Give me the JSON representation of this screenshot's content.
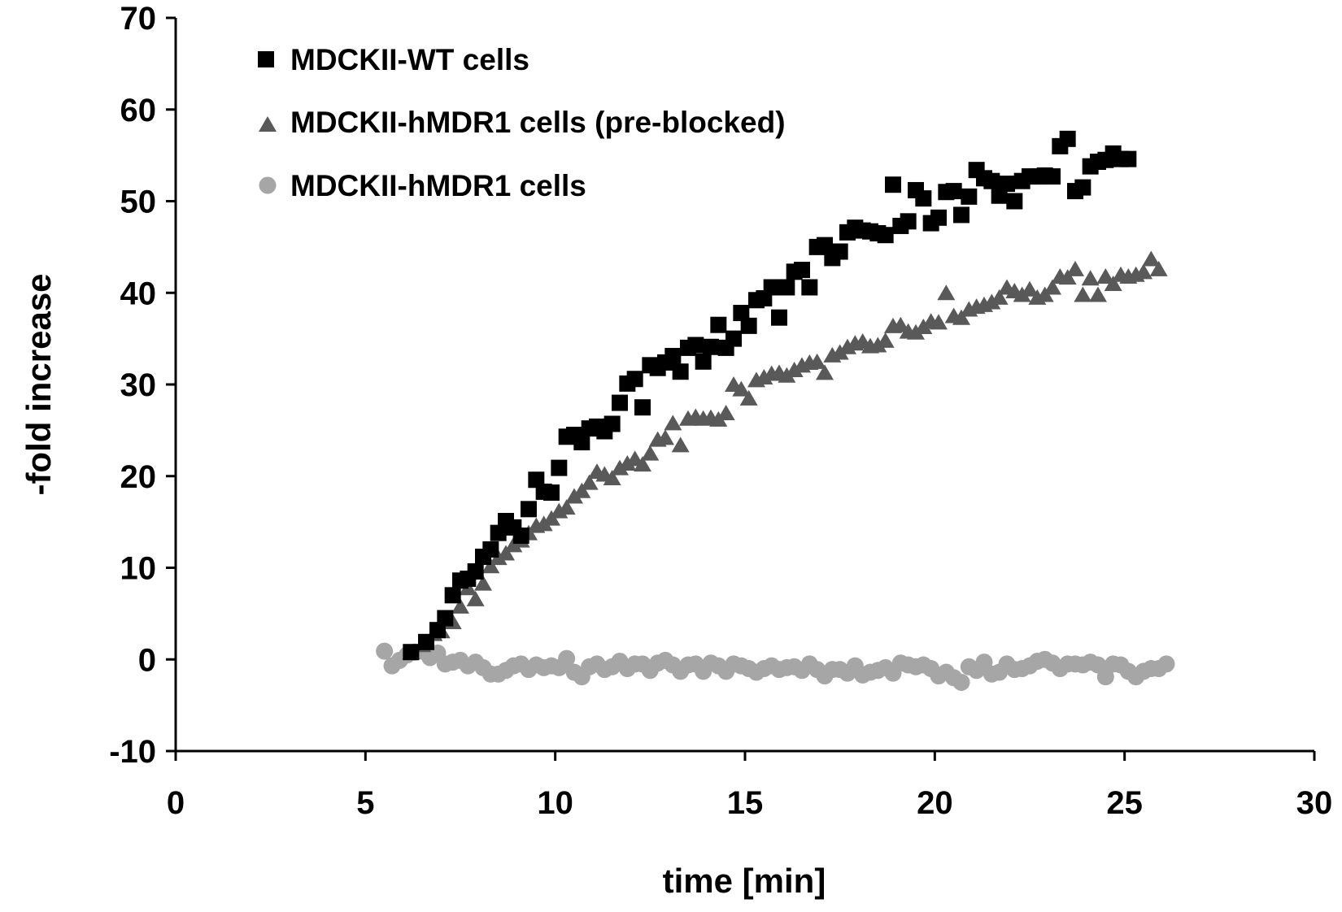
{
  "chart_data": {
    "type": "scatter",
    "title": "",
    "xlabel": "time [min]",
    "ylabel": "-fold increase",
    "xlim": [
      0,
      30
    ],
    "ylim": [
      -10,
      70
    ],
    "xticks": [
      0,
      5,
      10,
      15,
      20,
      25,
      30
    ],
    "yticks": [
      -10,
      0,
      10,
      20,
      30,
      40,
      50,
      60,
      70
    ],
    "grid": false,
    "legend_position": "top-left",
    "series": [
      {
        "name": "MDCKII-WT cells",
        "marker": "square",
        "color": "#000000",
        "x": [
          6.2,
          6.6,
          6.9,
          7.1,
          7.3,
          7.5,
          7.7,
          7.9,
          8.1,
          8.3,
          8.5,
          8.7,
          8.9,
          9.1,
          9.3,
          9.5,
          9.7,
          9.9,
          10.1,
          10.3,
          10.5,
          10.7,
          10.9,
          11.1,
          11.3,
          11.5,
          11.7,
          11.9,
          12.1,
          12.3,
          12.5,
          12.7,
          12.9,
          13.1,
          13.3,
          13.5,
          13.7,
          13.9,
          14.1,
          14.3,
          14.5,
          14.7,
          14.9,
          15.1,
          15.3,
          15.5,
          15.7,
          15.9,
          16.1,
          16.3,
          16.5,
          16.7,
          16.9,
          17.1,
          17.3,
          17.5,
          17.7,
          17.9,
          18.1,
          18.3,
          18.5,
          18.7,
          18.9,
          19.1,
          19.3,
          19.5,
          19.7,
          19.9,
          20.1,
          20.3,
          20.5,
          20.7,
          20.9,
          21.1,
          21.3,
          21.5,
          21.7,
          21.9,
          22.1,
          22.3,
          22.5,
          22.7,
          22.9,
          23.1,
          23.3,
          23.5,
          23.7,
          23.9,
          24.1,
          24.3,
          24.5,
          24.7,
          24.9,
          25.1
        ],
        "y": [
          0.8,
          1.9,
          3.2,
          4.5,
          7.0,
          8.6,
          8.8,
          9.6,
          11.2,
          12.0,
          13.8,
          15.1,
          14.4,
          13.5,
          16.4,
          19.6,
          18.3,
          18.2,
          20.9,
          24.3,
          24.5,
          23.7,
          25.2,
          25.4,
          24.9,
          25.7,
          28.0,
          30.1,
          30.6,
          27.5,
          32.1,
          31.8,
          32.4,
          33.1,
          31.4,
          34.0,
          34.3,
          32.5,
          34.1,
          36.5,
          34.0,
          35.0,
          37.8,
          36.4,
          39.2,
          39.4,
          40.6,
          37.3,
          40.6,
          42.3,
          42.5,
          40.6,
          45.0,
          45.2,
          43.8,
          44.5,
          46.6,
          47.1,
          46.8,
          46.7,
          46.5,
          46.3,
          51.8,
          47.3,
          47.8,
          51.2,
          50.3,
          47.6,
          48.2,
          51.0,
          51.1,
          48.5,
          50.5,
          53.4,
          52.5,
          52.2,
          50.6,
          51.9,
          50.0,
          52.2,
          52.7,
          52.7,
          52.8,
          52.7,
          56.0,
          56.8,
          51.1,
          51.5,
          53.8,
          54.3,
          54.5,
          55.2,
          54.6,
          54.6
        ]
      },
      {
        "name": "MDCKII-hMDR1 cells (pre-blocked)",
        "marker": "triangle",
        "color": "#595959",
        "x": [
          6.2,
          6.5,
          6.8,
          7.0,
          7.3,
          7.5,
          7.7,
          7.9,
          8.1,
          8.3,
          8.5,
          8.7,
          8.9,
          9.1,
          9.3,
          9.5,
          9.7,
          9.9,
          10.1,
          10.3,
          10.5,
          10.7,
          10.9,
          11.1,
          11.3,
          11.5,
          11.7,
          11.9,
          12.1,
          12.3,
          12.5,
          12.7,
          12.9,
          13.1,
          13.3,
          13.5,
          13.7,
          13.9,
          14.1,
          14.3,
          14.5,
          14.7,
          14.9,
          15.1,
          15.3,
          15.5,
          15.7,
          15.9,
          16.1,
          16.3,
          16.5,
          16.7,
          16.9,
          17.1,
          17.3,
          17.5,
          17.7,
          17.9,
          18.1,
          18.3,
          18.5,
          18.7,
          18.9,
          19.1,
          19.3,
          19.5,
          19.7,
          19.9,
          20.1,
          20.3,
          20.5,
          20.7,
          20.9,
          21.1,
          21.3,
          21.5,
          21.7,
          21.9,
          22.1,
          22.3,
          22.5,
          22.7,
          22.9,
          23.1,
          23.3,
          23.5,
          23.7,
          23.9,
          24.1,
          24.3,
          24.5,
          24.7,
          24.9,
          25.1,
          25.3,
          25.5,
          25.7,
          25.9
        ],
        "y": [
          0.8,
          1.6,
          2.8,
          3.1,
          4.1,
          5.8,
          7.8,
          6.6,
          8.3,
          10.2,
          11.1,
          11.6,
          12.5,
          13.0,
          13.8,
          14.6,
          14.8,
          15.4,
          16.2,
          16.6,
          17.8,
          18.4,
          19.3,
          20.5,
          20.2,
          19.8,
          20.9,
          21.4,
          21.9,
          21.3,
          22.5,
          24.0,
          24.2,
          25.8,
          23.4,
          26.3,
          26.5,
          26.3,
          26.4,
          26.2,
          26.9,
          30.0,
          29.5,
          28.5,
          30.5,
          30.8,
          31.2,
          31.3,
          31.0,
          31.6,
          32.1,
          32.4,
          32.5,
          31.3,
          33.2,
          33.5,
          34.1,
          34.5,
          34.7,
          34.2,
          34.3,
          34.8,
          36.4,
          36.5,
          35.8,
          35.7,
          36.3,
          36.9,
          36.8,
          40.0,
          37.5,
          37.3,
          38.2,
          38.5,
          38.7,
          39.0,
          39.5,
          40.6,
          40.2,
          39.8,
          40.4,
          39.5,
          39.8,
          40.6,
          41.8,
          41.7,
          42.6,
          39.8,
          41.6,
          39.8,
          41.8,
          41.0,
          42.0,
          41.8,
          42.0,
          42.3,
          43.7,
          42.6
        ]
      },
      {
        "name": "MDCKII-hMDR1 cells",
        "marker": "circle",
        "color": "#a6a6a6",
        "x": [
          5.5,
          5.7,
          5.9,
          6.1,
          6.3,
          6.5,
          6.7,
          6.9,
          7.1,
          7.3,
          7.5,
          7.7,
          7.9,
          8.1,
          8.3,
          8.5,
          8.7,
          8.9,
          9.1,
          9.3,
          9.5,
          9.7,
          9.9,
          10.1,
          10.3,
          10.5,
          10.7,
          10.9,
          11.1,
          11.3,
          11.5,
          11.7,
          11.9,
          12.1,
          12.3,
          12.5,
          12.7,
          12.9,
          13.1,
          13.3,
          13.5,
          13.7,
          13.9,
          14.1,
          14.3,
          14.5,
          14.7,
          14.9,
          15.1,
          15.3,
          15.5,
          15.7,
          15.9,
          16.1,
          16.3,
          16.5,
          16.7,
          16.9,
          17.1,
          17.3,
          17.5,
          17.7,
          17.9,
          18.1,
          18.3,
          18.5,
          18.7,
          18.9,
          19.1,
          19.3,
          19.5,
          19.7,
          19.9,
          20.1,
          20.3,
          20.5,
          20.7,
          20.9,
          21.1,
          21.3,
          21.5,
          21.7,
          21.9,
          22.1,
          22.3,
          22.5,
          22.7,
          22.9,
          23.1,
          23.3,
          23.5,
          23.7,
          23.9,
          24.1,
          24.3,
          24.5,
          24.7,
          24.9,
          25.1,
          25.3,
          25.5,
          25.7,
          25.9,
          26.1
        ],
        "y": [
          0.9,
          -0.7,
          -0.1,
          0.5,
          0.8,
          0.9,
          0.2,
          0.7,
          -0.5,
          -0.3,
          -0.1,
          -0.7,
          -0.3,
          -0.9,
          -1.6,
          -1.6,
          -1.2,
          -0.7,
          -0.5,
          -1.1,
          -0.6,
          -0.9,
          -0.7,
          -0.9,
          0.1,
          -1.4,
          -1.9,
          -0.8,
          -0.5,
          -1.1,
          -0.8,
          -0.2,
          -1.0,
          -0.5,
          -0.5,
          -1.2,
          -0.4,
          -0.1,
          -0.6,
          -1.3,
          -0.6,
          -0.5,
          -1.3,
          -0.4,
          -0.7,
          -1.3,
          -0.5,
          -0.7,
          -1.0,
          -1.4,
          -1.0,
          -0.7,
          -1.1,
          -0.9,
          -0.8,
          -1.2,
          -0.5,
          -1.1,
          -1.8,
          -1.1,
          -1.1,
          -1.5,
          -0.7,
          -1.7,
          -1.4,
          -1.2,
          -0.9,
          -1.5,
          -0.4,
          -0.6,
          -0.8,
          -0.6,
          -1.0,
          -1.8,
          -1.4,
          -2.0,
          -2.5,
          -0.8,
          -1.2,
          -0.3,
          -1.6,
          -1.4,
          -0.5,
          -1.1,
          -1.0,
          -0.7,
          -0.2,
          0.0,
          -0.4,
          -1.0,
          -0.5,
          -0.5,
          -0.6,
          -0.3,
          -0.6,
          -1.9,
          -0.5,
          -0.6,
          -1.3,
          -1.9,
          -1.3,
          -1.0,
          -1.0,
          -0.5
        ]
      }
    ]
  }
}
